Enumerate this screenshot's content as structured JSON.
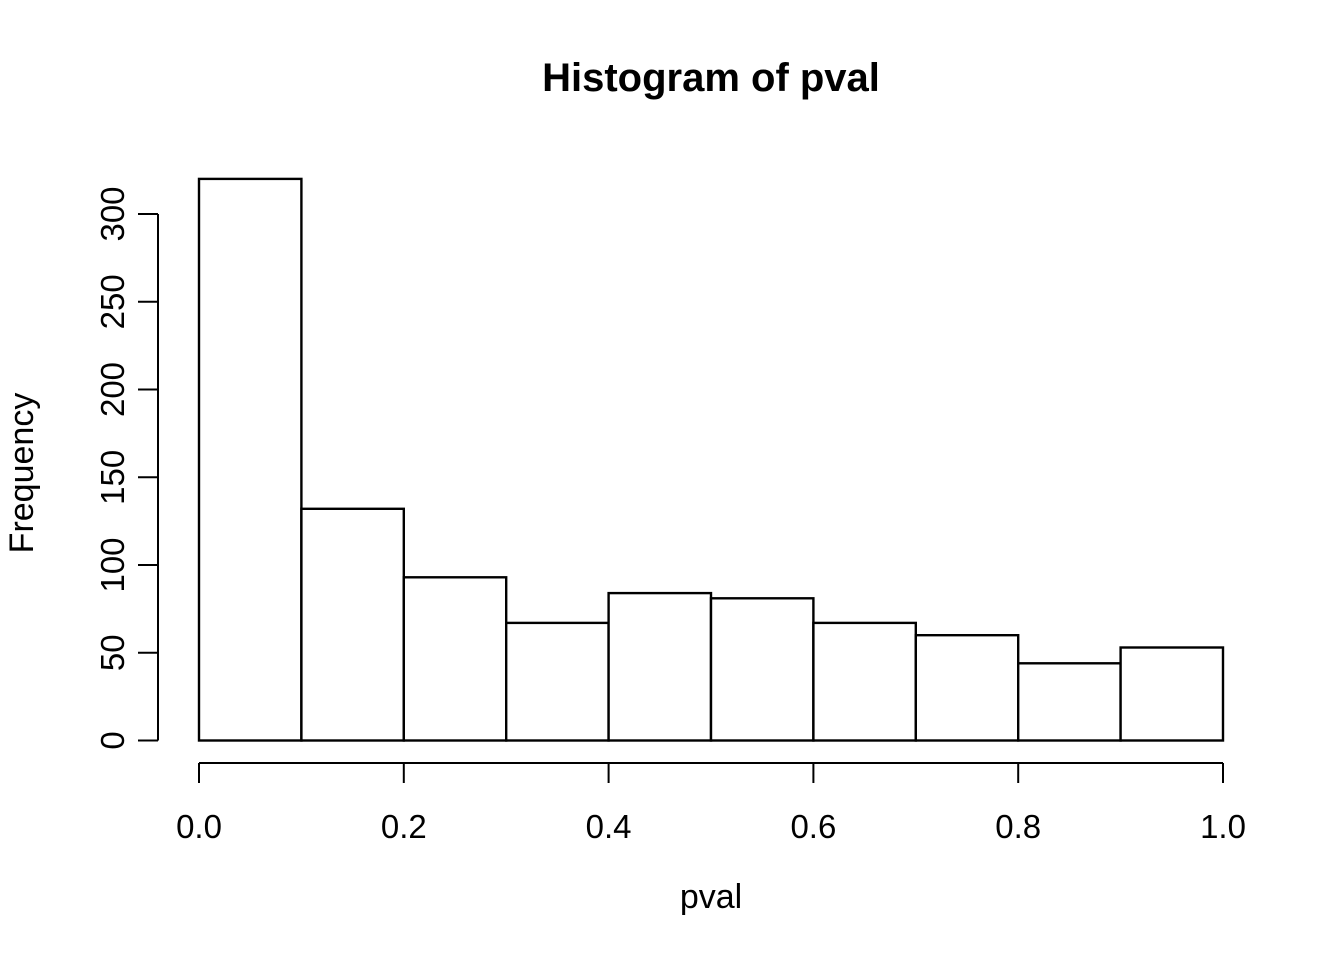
{
  "chart_data": {
    "type": "bar",
    "subtype": "histogram",
    "title": "Histogram of pval",
    "xlabel": "pval",
    "ylabel": "Frequency",
    "bin_edges": [
      0.0,
      0.1,
      0.2,
      0.3,
      0.4,
      0.5,
      0.6,
      0.7,
      0.8,
      0.9,
      1.0
    ],
    "counts": [
      320,
      132,
      93,
      67,
      84,
      81,
      67,
      60,
      44,
      53
    ],
    "x_ticks": {
      "values": [
        0.0,
        0.2,
        0.4,
        0.6,
        0.8,
        1.0
      ],
      "labels": [
        "0.0",
        "0.2",
        "0.4",
        "0.6",
        "0.8",
        "1.0"
      ]
    },
    "y_ticks": {
      "values": [
        0,
        50,
        100,
        150,
        200,
        250,
        300
      ],
      "labels": [
        "0",
        "50",
        "100",
        "150",
        "200",
        "250",
        "300"
      ]
    },
    "xlim": [
      0.0,
      1.0
    ],
    "ylim": [
      0,
      320
    ],
    "grid": "off",
    "legend": "none",
    "bar_fill": "#ffffff",
    "stroke_color": "#000000",
    "background_color": "#ffffff"
  }
}
